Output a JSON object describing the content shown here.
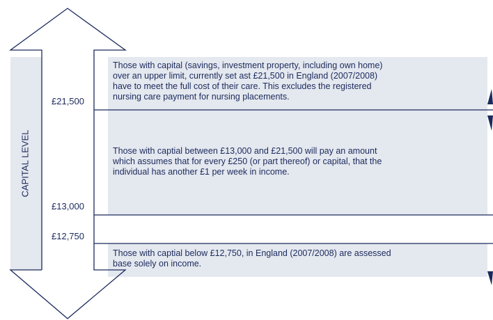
{
  "axis_label": "CAPITAL LEVEL",
  "levels": [
    "£21,500",
    "£13,000",
    "£12,750"
  ],
  "bands": [
    {
      "lines": [
        "Those with capital (savings, investment property, including own home)",
        "over an upper limit, currently set ast £21,500 in England (2007/2008)",
        "have to meet the full cost of their care. This excludes the registered",
        "nursing care payment for nursing placements."
      ]
    },
    {
      "lines": [
        "Those with captial between £13,000 and £21,500 will pay an amount",
        "which assumes that for every £250 (or part thereof) or capital, that the",
        "individual has another £1 per week in income."
      ]
    },
    {
      "lines": [
        "Those with captial below £12,750, in England (2007/2008) are assessed",
        "base solely on income."
      ]
    }
  ]
}
